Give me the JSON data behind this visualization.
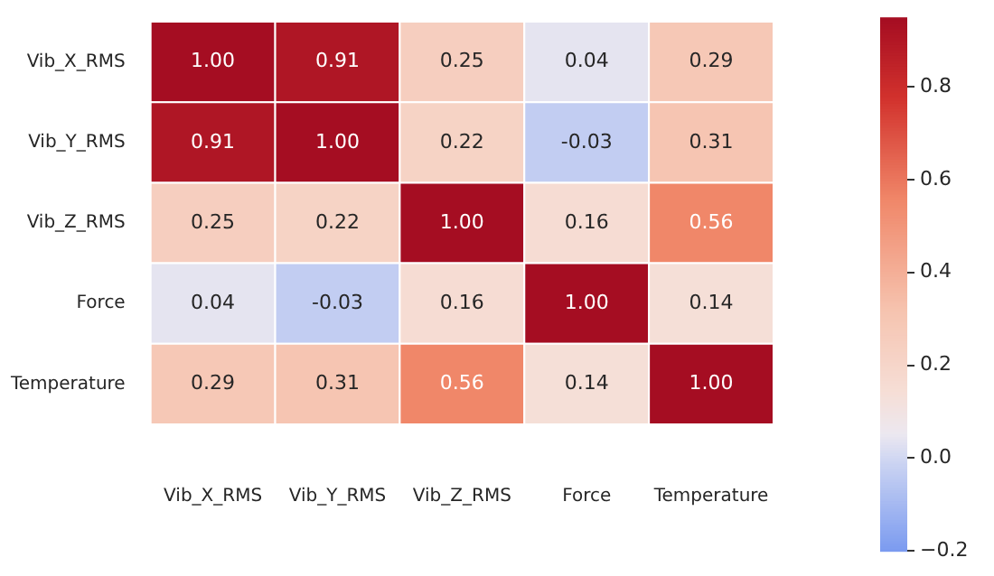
{
  "chart_data": {
    "type": "heatmap",
    "categories": [
      "Vib_X_RMS",
      "Vib_Y_RMS",
      "Vib_Z_RMS",
      "Force",
      "Temperature"
    ],
    "y_categories": [
      "Vib_X_RMS",
      "Vib_Y_RMS",
      "Vib_Z_RMS",
      "Force",
      "Temperature"
    ],
    "cells": [
      [
        1.0,
        0.91,
        0.25,
        0.04,
        0.29
      ],
      [
        0.91,
        1.0,
        0.22,
        -0.03,
        0.31
      ],
      [
        0.25,
        0.22,
        1.0,
        0.16,
        0.56
      ],
      [
        0.04,
        -0.03,
        0.16,
        1.0,
        0.14
      ],
      [
        0.29,
        0.31,
        0.56,
        0.14,
        1.0
      ]
    ],
    "cell_labels": [
      [
        "1.00",
        "0.91",
        "0.25",
        "0.04",
        "0.29"
      ],
      [
        "0.91",
        "1.00",
        "0.22",
        "-0.03",
        "0.31"
      ],
      [
        "0.25",
        "0.22",
        "1.00",
        "0.16",
        "0.56"
      ],
      [
        "0.04",
        "-0.03",
        "0.16",
        "1.00",
        "0.14"
      ],
      [
        "0.29",
        "0.31",
        "0.56",
        "0.14",
        "1.00"
      ]
    ],
    "clim": [
      -0.2,
      0.95
    ],
    "cticks": [
      {
        "value": -0.2,
        "label": "−0.2"
      },
      {
        "value": 0,
        "label": "0.0"
      },
      {
        "value": 0.2,
        "label": "0.2"
      },
      {
        "value": 0.4,
        "label": "0.4"
      },
      {
        "value": 0.6,
        "label": "0.6"
      },
      {
        "value": 0.8,
        "label": "0.8"
      }
    ]
  }
}
